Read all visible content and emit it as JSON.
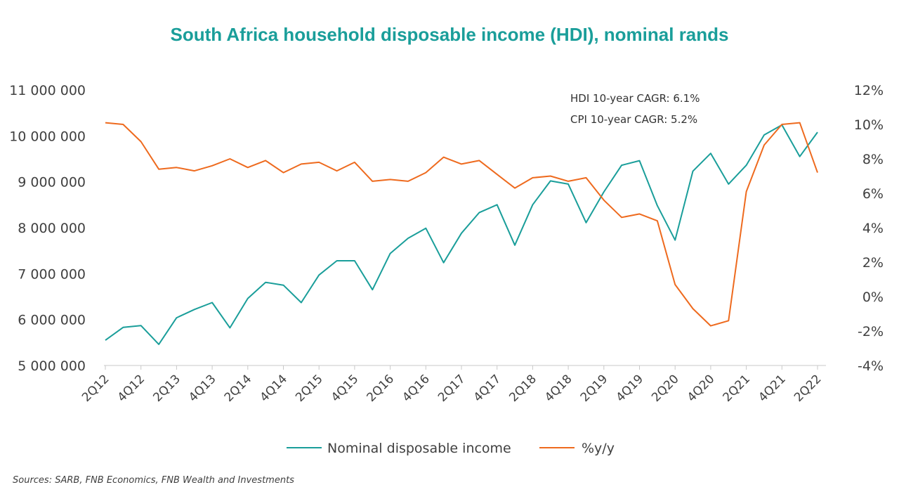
{
  "chart_data": {
    "type": "line",
    "title": "South Africa household disposable income (HDI), nominal rands",
    "x": [
      "2Q12",
      "3Q12",
      "4Q12",
      "1Q13",
      "2Q13",
      "3Q13",
      "4Q13",
      "1Q14",
      "2Q14",
      "3Q14",
      "4Q14",
      "1Q15",
      "2Q15",
      "3Q15",
      "4Q15",
      "1Q16",
      "2Q16",
      "3Q16",
      "4Q16",
      "1Q17",
      "2Q17",
      "3Q17",
      "4Q17",
      "1Q18",
      "2Q18",
      "3Q18",
      "4Q18",
      "1Q19",
      "2Q19",
      "3Q19",
      "4Q19",
      "1Q20",
      "2Q20",
      "3Q20",
      "4Q20",
      "1Q21",
      "2Q21",
      "3Q21",
      "4Q21",
      "1Q22",
      "2Q22"
    ],
    "x_tick_labels": [
      "2Q12",
      "4Q12",
      "2Q13",
      "4Q13",
      "2Q14",
      "4Q14",
      "2Q15",
      "4Q15",
      "2Q16",
      "4Q16",
      "2Q17",
      "4Q17",
      "2Q18",
      "4Q18",
      "2Q19",
      "4Q19",
      "2Q20",
      "4Q20",
      "2Q21",
      "4Q21",
      "2Q22"
    ],
    "left_axis": {
      "ylim": [
        5000000,
        11000000
      ],
      "ticks": [
        5000000,
        6000000,
        7000000,
        8000000,
        9000000,
        10000000,
        11000000
      ],
      "tick_labels": [
        "5 000 000",
        "6 000 000",
        "7 000 000",
        "8 000 000",
        "9 000 000",
        "10 000 000",
        "11 000 000"
      ]
    },
    "right_axis": {
      "ylim": [
        -4,
        12
      ],
      "ticks": [
        -4,
        -2,
        0,
        2,
        4,
        6,
        8,
        10,
        12
      ],
      "tick_labels": [
        "-4%",
        "-2%",
        "0%",
        "2%",
        "4%",
        "6%",
        "8%",
        "10%",
        "12%"
      ]
    },
    "series": [
      {
        "name": "Nominal disposable income",
        "axis": "left",
        "color": "#1a9e9a",
        "values": [
          5550000,
          5830000,
          5870000,
          5460000,
          6040000,
          6220000,
          6370000,
          5820000,
          6460000,
          6810000,
          6750000,
          6370000,
          6970000,
          7280000,
          7280000,
          6650000,
          7440000,
          7770000,
          7990000,
          7240000,
          7880000,
          8330000,
          8500000,
          7620000,
          8500000,
          9020000,
          8950000,
          8110000,
          8780000,
          9360000,
          9460000,
          8480000,
          7730000,
          9230000,
          9620000,
          8950000,
          9360000,
          10020000,
          10240000,
          9550000,
          10080000
        ]
      },
      {
        "name": "%y/y",
        "axis": "right",
        "color": "#ee6a1e",
        "values": [
          10.1,
          10.0,
          9.0,
          7.4,
          7.5,
          7.3,
          7.6,
          8.0,
          7.5,
          7.9,
          7.2,
          7.7,
          7.8,
          7.3,
          7.8,
          6.7,
          6.8,
          6.7,
          7.2,
          8.1,
          7.7,
          7.9,
          7.1,
          6.3,
          6.9,
          7.0,
          6.7,
          6.9,
          5.6,
          4.6,
          4.8,
          4.4,
          0.7,
          -0.7,
          -1.7,
          -1.4,
          6.1,
          8.8,
          10.0,
          10.1,
          7.2
        ]
      }
    ],
    "annotations": [
      "HDI 10-year CAGR: 6.1%",
      "CPI 10-year CAGR: 5.2%"
    ],
    "legend_position": "bottom",
    "grid": false
  },
  "source_note": "Sources: SARB, FNB Economics, FNB Wealth and Investments"
}
